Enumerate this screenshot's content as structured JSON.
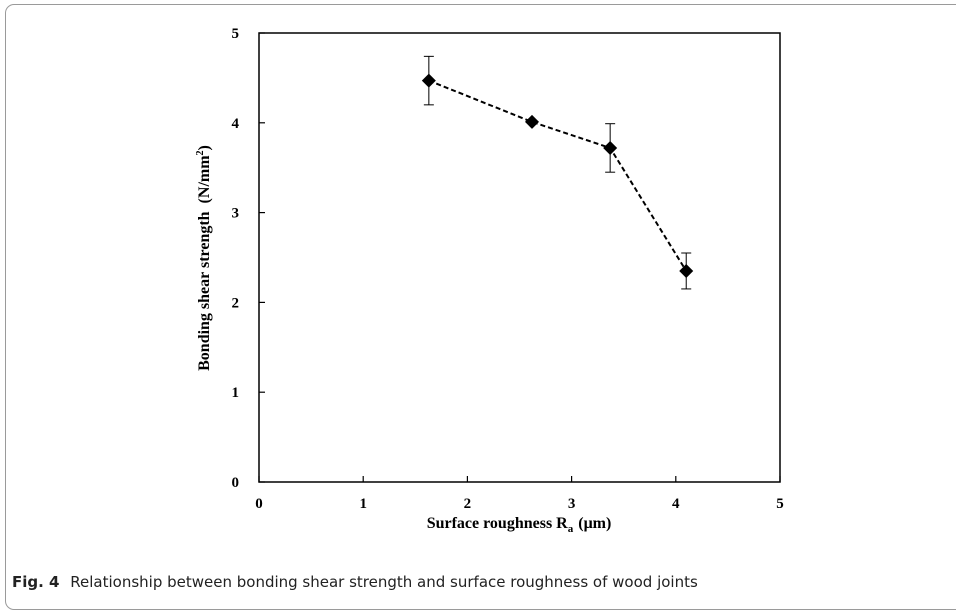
{
  "chart_data": {
    "type": "scatter",
    "title": "",
    "xlabel": "Surface roughness R",
    "xlabel_sub": "a",
    "xlabel_unit": "(μm)",
    "ylabel": "Bonding shear strength",
    "ylabel_unit_pre": "(N/mm",
    "ylabel_unit_sup": "2",
    "ylabel_unit_post": ")",
    "xlim": [
      0,
      5
    ],
    "ylim": [
      0,
      5
    ],
    "xticks": [
      "0",
      "1",
      "2",
      "3",
      "4",
      "5"
    ],
    "yticks": [
      "0",
      "1",
      "2",
      "3",
      "4",
      "5"
    ],
    "grid": false,
    "line_style": "dashed",
    "marker": "diamond",
    "x": [
      1.63,
      2.62,
      3.37,
      4.1
    ],
    "y": [
      4.47,
      4.01,
      3.72,
      2.35
    ],
    "error": [
      0.27,
      0.02,
      0.27,
      0.2
    ]
  },
  "caption": {
    "label": "Fig. 4",
    "text": "Relationship between bonding shear strength and surface roughness of wood joints"
  }
}
